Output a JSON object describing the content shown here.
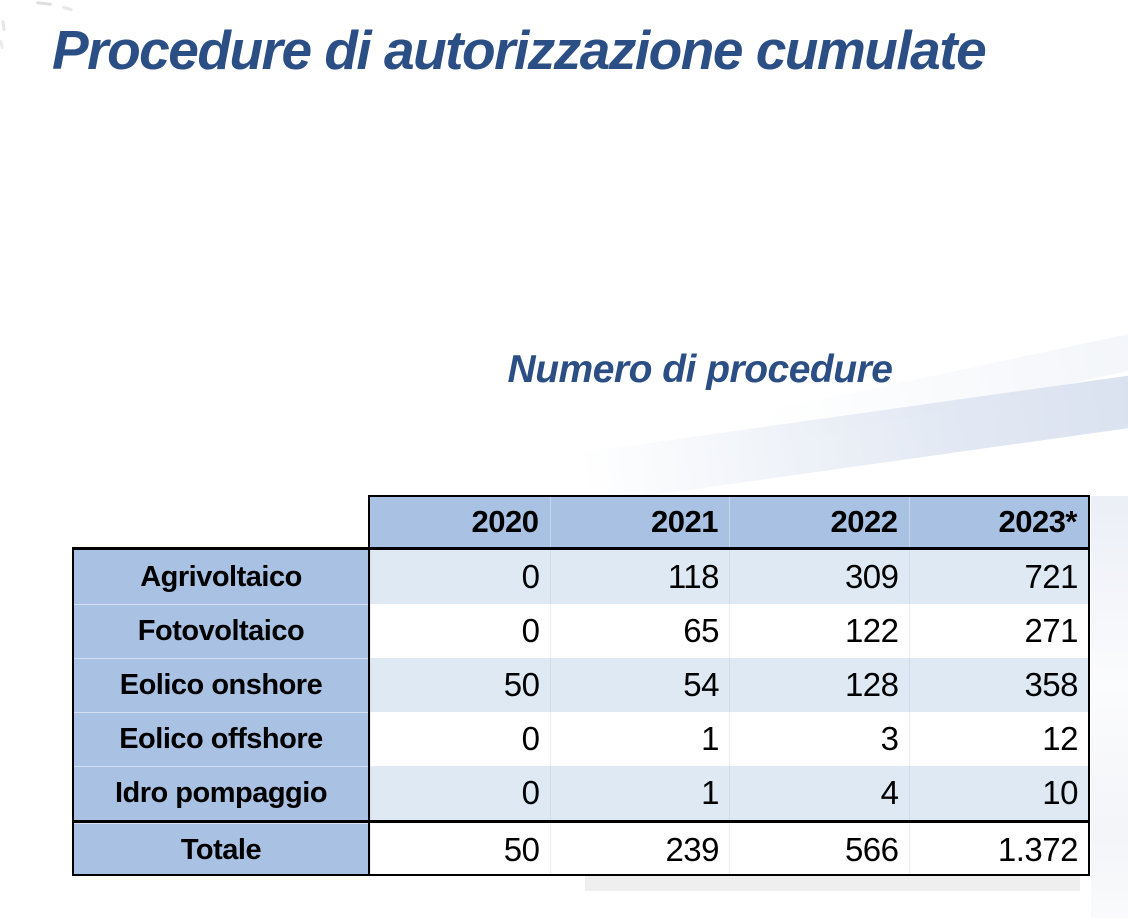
{
  "slide": {
    "title": "Procedure di autorizzazione cumulate",
    "subtitle": "Numero di procedure"
  },
  "table": {
    "years": [
      "2020",
      "2021",
      "2022",
      "2023*"
    ],
    "rows": [
      {
        "label": "Agrivoltaico",
        "values": [
          "0",
          "118",
          "309",
          "721"
        ]
      },
      {
        "label": "Fotovoltaico",
        "values": [
          "0",
          "65",
          "122",
          "271"
        ]
      },
      {
        "label": "Eolico onshore",
        "values": [
          "50",
          "54",
          "128",
          "358"
        ]
      },
      {
        "label": "Eolico offshore",
        "values": [
          "0",
          "1",
          "3",
          "12"
        ]
      },
      {
        "label": "Idro pompaggio",
        "values": [
          "0",
          "1",
          "4",
          "10"
        ]
      },
      {
        "label": "Totale",
        "values": [
          "50",
          "239",
          "566",
          "1.372"
        ]
      }
    ]
  },
  "colors": {
    "title_blue": "#2b4e85",
    "header_fill": "#a9c1e3",
    "band_fill": "#dfe9f4",
    "border": "#000000"
  },
  "chart_data": {
    "type": "table",
    "title": "Procedure di autorizzazione cumulate",
    "subtitle": "Numero di procedure",
    "categories": [
      "2020",
      "2021",
      "2022",
      "2023*"
    ],
    "series": [
      {
        "name": "Agrivoltaico",
        "values": [
          0,
          118,
          309,
          721
        ]
      },
      {
        "name": "Fotovoltaico",
        "values": [
          0,
          65,
          122,
          271
        ]
      },
      {
        "name": "Eolico onshore",
        "values": [
          50,
          54,
          128,
          358
        ]
      },
      {
        "name": "Eolico offshore",
        "values": [
          0,
          1,
          3,
          12
        ]
      },
      {
        "name": "Idro pompaggio",
        "values": [
          0,
          1,
          4,
          10
        ]
      },
      {
        "name": "Totale",
        "values": [
          50,
          239,
          566,
          1372
        ]
      }
    ],
    "number_format": "Italian thousands separator (1.372)"
  }
}
